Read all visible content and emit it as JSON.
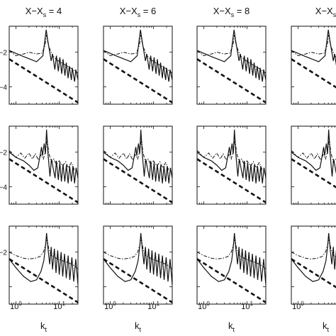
{
  "chart_data": {
    "type": "line",
    "layout": {
      "rows": 3,
      "cols": 4
    },
    "column_titles": [
      {
        "main": "X−X",
        "sub": "s",
        "value": " = 4"
      },
      {
        "main": "X−X",
        "sub": "s",
        "value": " = 6"
      },
      {
        "main": "X−X",
        "sub": "s",
        "value": " = 8"
      },
      {
        "main": "X−X",
        "sub": "s",
        "value": ""
      }
    ],
    "xlabel": {
      "main": "k",
      "sub": "t"
    },
    "x_scale": "log",
    "xlim": [
      0.7,
      27
    ],
    "x_ticks": [
      {
        "value": 1,
        "base": "10",
        "exp": "0"
      },
      {
        "value": 10,
        "base": "10",
        "exp": "1"
      }
    ],
    "y_scale": "log10",
    "ylim": [
      -5,
      -0.5
    ],
    "y_tick_labels": [
      {
        "value": -2,
        "label": "−2"
      },
      {
        "value": -4,
        "label": "−4"
      }
    ],
    "rows_with_y_labels": {
      "0": [
        "-2",
        "-4"
      ],
      "1": [
        "-2",
        "-4"
      ],
      "2": [
        "-2"
      ]
    },
    "series_styles": {
      "solid": "solid line",
      "dashdot": "dash-dot line",
      "reference": "thick dashed line"
    },
    "reference_line": {
      "x": [
        0.7,
        27
      ],
      "y": [
        -2.4,
        -4.9
      ]
    },
    "panels_by_row": [
      {
        "row": 0,
        "solid": {
          "x": [
            0.7,
            1.5,
            3.0,
            4.2,
            4.7,
            5.0,
            5.4,
            6.5,
            7.0,
            7.9,
            8.6,
            9.5,
            10.3,
            11.4,
            12.2,
            13.5,
            14.5,
            16.0,
            17.0,
            19.0,
            20.0,
            22.5,
            24.0,
            27.0
          ],
          "y": [
            -1.9,
            -2.25,
            -2.55,
            -2.2,
            -1.2,
            -0.7,
            -1.3,
            -2.5,
            -2.1,
            -3.0,
            -2.2,
            -3.1,
            -2.3,
            -3.25,
            -2.4,
            -3.35,
            -2.6,
            -3.5,
            -2.8,
            -3.6,
            -2.9,
            -3.7,
            -3.0,
            -3.6
          ]
        },
        "dashdot": {
          "x": [
            0.7,
            1.0,
            1.5,
            2.0,
            3.0,
            4.0,
            4.7,
            5.1,
            5.6,
            7.0,
            9.0,
            11.0,
            14.0,
            18.0,
            22.0,
            27.0
          ],
          "y": [
            -1.9,
            -2.2,
            -2.1,
            -2.0,
            -2.1,
            -2.05,
            -1.6,
            -1.0,
            -1.6,
            -2.2,
            -2.45,
            -2.6,
            -2.75,
            -2.9,
            -3.05,
            -3.2
          ]
        }
      },
      {
        "row": 1,
        "solid": {
          "x": [
            0.7,
            1.0,
            1.5,
            2.0,
            2.6,
            3.2,
            3.6,
            3.9,
            4.1,
            4.5,
            4.8,
            5.1,
            5.5,
            6.1,
            6.6,
            7.2,
            8.0,
            8.6,
            9.5,
            10.3,
            11.2,
            12.2,
            13.4,
            14.6,
            16.0,
            17.4,
            19.0,
            20.7,
            22.5,
            24.5,
            27.0
          ],
          "y": [
            -2.0,
            -2.3,
            -2.5,
            -2.75,
            -3.05,
            -2.9,
            -2.2,
            -1.7,
            -2.2,
            -1.5,
            -2.1,
            -0.7,
            -2.1,
            -3.4,
            -2.4,
            -2.9,
            -3.5,
            -2.5,
            -3.6,
            -2.6,
            -3.7,
            -2.7,
            -3.7,
            -2.75,
            -3.8,
            -2.8,
            -3.7,
            -2.8,
            -3.8,
            -2.9,
            -3.5
          ]
        },
        "dashdot": {
          "x": [
            0.7,
            1.0,
            1.3,
            1.6,
            2.0,
            2.4,
            2.8,
            3.3,
            3.8,
            4.3,
            4.8,
            5.2,
            5.7,
            6.5,
            7.5,
            8.5,
            10.0,
            12.0,
            14.0,
            16.0,
            19.0,
            22.0,
            27.0
          ],
          "y": [
            -1.9,
            -2.3,
            -2.05,
            -2.35,
            -2.05,
            -2.4,
            -2.1,
            -2.45,
            -2.15,
            -2.4,
            -1.9,
            -1.2,
            -2.0,
            -2.6,
            -2.4,
            -2.7,
            -2.5,
            -2.8,
            -2.55,
            -2.9,
            -2.6,
            -3.0,
            -2.9
          ]
        }
      },
      {
        "row": 2,
        "solid": {
          "x": [
            0.7,
            1.0,
            1.5,
            2.2,
            3.0,
            3.8,
            4.4,
            4.8,
            5.1,
            5.5,
            6.0,
            6.5,
            7.0,
            7.7,
            8.4,
            9.2,
            10.0,
            11.0,
            12.0,
            13.2,
            14.5,
            16.0,
            17.5,
            19.5,
            21.5,
            24.0,
            27.0
          ],
          "y": [
            -2.4,
            -2.9,
            -3.4,
            -3.7,
            -3.6,
            -3.1,
            -2.5,
            -1.7,
            -0.9,
            -1.8,
            -2.7,
            -1.7,
            -3.0,
            -1.8,
            -3.2,
            -1.9,
            -3.3,
            -2.0,
            -3.4,
            -2.1,
            -3.5,
            -2.2,
            -3.6,
            -2.3,
            -3.7,
            -2.4,
            -3.9
          ]
        },
        "dashdot": {
          "x": [
            0.7,
            1.0,
            1.5,
            2.0,
            2.8,
            3.6,
            4.3,
            4.8,
            5.2,
            5.7,
            6.5,
            7.5,
            9.0,
            11.0,
            13.0,
            16.0,
            19.0,
            23.0,
            27.0
          ],
          "y": [
            -2.0,
            -2.2,
            -2.35,
            -2.4,
            -2.35,
            -2.25,
            -2.0,
            -1.6,
            -1.2,
            -1.8,
            -2.2,
            -2.25,
            -2.4,
            -2.45,
            -2.55,
            -2.6,
            -2.7,
            -2.8,
            -3.0
          ]
        }
      }
    ]
  }
}
